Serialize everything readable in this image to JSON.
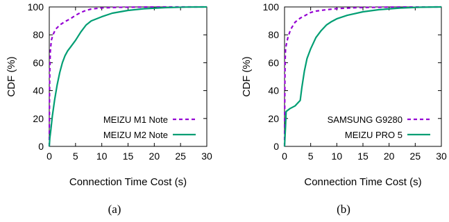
{
  "chart_data": [
    {
      "type": "line",
      "caption": "(a)",
      "xlabel": "Connection Time Cost (s)",
      "ylabel": "CDF (%)",
      "xlim": [
        0,
        30
      ],
      "ylim": [
        0,
        100
      ],
      "xticks": [
        "0",
        "5",
        "10",
        "15",
        "20",
        "25",
        "30"
      ],
      "yticks": [
        "0",
        "20",
        "40",
        "60",
        "80",
        "100"
      ],
      "legend_position": "bottom-right",
      "series": [
        {
          "name": "MEIZU M1 Note",
          "color": "#9400d3",
          "style": "dashed",
          "points": [
            [
              0,
              0
            ],
            [
              0.05,
              40
            ],
            [
              0.1,
              55
            ],
            [
              0.2,
              68
            ],
            [
              0.4,
              76
            ],
            [
              0.7,
              80
            ],
            [
              1.2,
              84
            ],
            [
              2,
              87
            ],
            [
              3,
              89.5
            ],
            [
              4,
              91.5
            ],
            [
              5,
              94
            ],
            [
              6,
              96
            ],
            [
              7,
              97.5
            ],
            [
              8,
              98.5
            ],
            [
              10,
              99.3
            ],
            [
              13,
              99.7
            ],
            [
              17,
              99.9
            ],
            [
              22,
              100
            ],
            [
              30,
              100
            ]
          ]
        },
        {
          "name": "MEIZU M2 Note",
          "color": "#009e73",
          "style": "solid",
          "points": [
            [
              0,
              0
            ],
            [
              0.1,
              6
            ],
            [
              0.3,
              12
            ],
            [
              0.6,
              22
            ],
            [
              1,
              33
            ],
            [
              1.5,
              44
            ],
            [
              2,
              53
            ],
            [
              2.5,
              60
            ],
            [
              3,
              65
            ],
            [
              3.5,
              68.5
            ],
            [
              4,
              71
            ],
            [
              5,
              76
            ],
            [
              6,
              82
            ],
            [
              7,
              87
            ],
            [
              8,
              90
            ],
            [
              10,
              93
            ],
            [
              12,
              95.5
            ],
            [
              15,
              97.5
            ],
            [
              18,
              98.7
            ],
            [
              22,
              99.5
            ],
            [
              26,
              99.9
            ],
            [
              30,
              100
            ]
          ]
        }
      ]
    },
    {
      "type": "line",
      "caption": "(b)",
      "xlabel": "Connection Time Cost (s)",
      "ylabel": "CDF (%)",
      "xlim": [
        0,
        30
      ],
      "ylim": [
        0,
        100
      ],
      "xticks": [
        "0",
        "5",
        "10",
        "15",
        "20",
        "25",
        "30"
      ],
      "yticks": [
        "0",
        "20",
        "40",
        "60",
        "80",
        "100"
      ],
      "legend_position": "bottom-right",
      "series": [
        {
          "name": "SAMSUNG G9280",
          "color": "#9400d3",
          "style": "dashed",
          "points": [
            [
              0,
              0
            ],
            [
              0.05,
              40
            ],
            [
              0.1,
              60
            ],
            [
              0.2,
              70
            ],
            [
              0.4,
              74
            ],
            [
              0.7,
              79
            ],
            [
              1.2,
              84
            ],
            [
              2,
              89
            ],
            [
              3,
              92
            ],
            [
              4,
              94
            ],
            [
              5,
              96
            ],
            [
              6,
              97
            ],
            [
              8,
              98
            ],
            [
              10,
              98.8
            ],
            [
              14,
              99.5
            ],
            [
              20,
              99.9
            ],
            [
              30,
              100
            ]
          ]
        },
        {
          "name": "MEIZU PRO 5",
          "color": "#009e73",
          "style": "solid",
          "points": [
            [
              0,
              0
            ],
            [
              0.2,
              15
            ],
            [
              0.3,
              25
            ],
            [
              1,
              27
            ],
            [
              2,
              29
            ],
            [
              2.5,
              31
            ],
            [
              3,
              33
            ],
            [
              3.3,
              42
            ],
            [
              3.8,
              54
            ],
            [
              4.3,
              63
            ],
            [
              5,
              70
            ],
            [
              6,
              78
            ],
            [
              7,
              83
            ],
            [
              8,
              87
            ],
            [
              9,
              89.5
            ],
            [
              10,
              91.5
            ],
            [
              12,
              94
            ],
            [
              15,
              96.5
            ],
            [
              18,
              98
            ],
            [
              22,
              99.2
            ],
            [
              26,
              99.8
            ],
            [
              30,
              100
            ]
          ]
        }
      ]
    }
  ]
}
